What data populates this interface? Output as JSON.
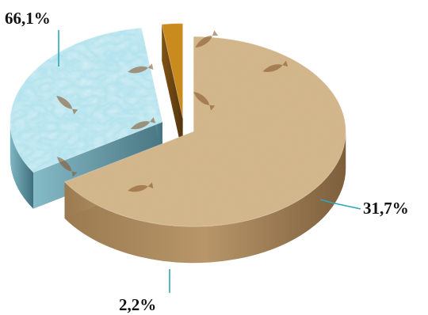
{
  "chart_data": {
    "type": "pie",
    "title": "",
    "slices": [
      {
        "value": 66.1,
        "label": "66,1%",
        "color": "#d8b98a"
      },
      {
        "value": 31.7,
        "label": "31,7%",
        "color": "#a9dde8"
      },
      {
        "value": 2.2,
        "label": "2,2%",
        "color": "#c98a1e"
      }
    ],
    "style": "3d-exploded",
    "leader_line_color": "#2fa6b6"
  }
}
